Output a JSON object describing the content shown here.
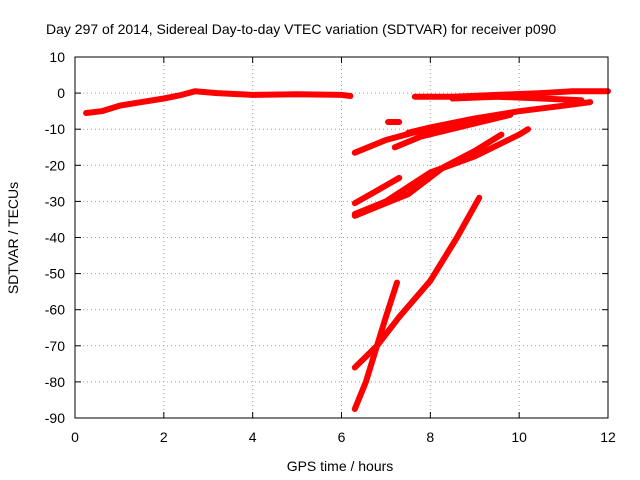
{
  "chart_data": {
    "type": "scatter",
    "title": "Day 297 of 2014, Sidereal Day-to-day VTEC variation (SDTVAR) for receiver p090",
    "xlabel": "GPS time / hours",
    "ylabel": "SDTVAR / TECUs",
    "xlim": [
      0,
      12
    ],
    "ylim": [
      -90,
      10
    ],
    "xticks": [
      0,
      2,
      4,
      6,
      8,
      10,
      12
    ],
    "yticks": [
      10,
      0,
      -10,
      -20,
      -30,
      -40,
      -50,
      -60,
      -70,
      -80,
      -90
    ],
    "grid": true,
    "marker": "plus",
    "color": "#ff0000",
    "series": [
      {
        "x": [
          0.25,
          0.6,
          1.0,
          1.5,
          2.0,
          2.4,
          2.7,
          3.2,
          4.0,
          5.0,
          6.0,
          6.2
        ],
        "y": [
          -5.5,
          -5.0,
          -3.5,
          -2.5,
          -1.5,
          -0.5,
          0.5,
          0.0,
          -0.5,
          -0.3,
          -0.5,
          -0.8
        ]
      },
      {
        "x": [
          7.05,
          7.3
        ],
        "y": [
          -8.0,
          -8.0
        ]
      },
      {
        "x": [
          7.65,
          8.5,
          9.5,
          10.5,
          11.2,
          12.0
        ],
        "y": [
          -1.0,
          -1.0,
          -0.5,
          0.0,
          0.5,
          0.5
        ]
      },
      {
        "x": [
          8.5,
          9.5,
          10.5,
          11.4
        ],
        "y": [
          -1.5,
          -1.0,
          -1.5,
          -2.0
        ]
      },
      {
        "x": [
          7.5,
          8.0,
          9.0,
          10.0,
          11.0,
          11.6
        ],
        "y": [
          -11.0,
          -9.5,
          -7.0,
          -5.0,
          -3.5,
          -2.5
        ]
      },
      {
        "x": [
          6.3,
          7.0,
          7.6,
          8.5
        ],
        "y": [
          -16.5,
          -13.0,
          -11.0,
          -9.0
        ]
      },
      {
        "x": [
          7.2,
          7.8,
          8.8,
          9.8
        ],
        "y": [
          -15.0,
          -12.0,
          -9.0,
          -6.0
        ]
      },
      {
        "x": [
          6.3,
          6.8,
          7.3
        ],
        "y": [
          -30.5,
          -27.0,
          -23.5
        ]
      },
      {
        "x": [
          6.3,
          7.0,
          8.0,
          9.0,
          10.0,
          10.2
        ],
        "y": [
          -33.5,
          -30.0,
          -22.0,
          -17.5,
          -11.5,
          -10.0
        ]
      },
      {
        "x": [
          6.3,
          7.5,
          8.3,
          9.0,
          9.6
        ],
        "y": [
          -34.0,
          -28.0,
          -20.5,
          -16.0,
          -11.5
        ]
      },
      {
        "x": [
          6.3,
          6.8,
          7.3,
          8.0,
          8.6,
          9.1
        ],
        "y": [
          -76.0,
          -70.0,
          -62.0,
          -52.0,
          -40.0,
          -29.0
        ]
      },
      {
        "x": [
          6.3,
          6.55,
          6.8,
          7.0,
          7.25
        ],
        "y": [
          -87.5,
          -80.0,
          -70.0,
          -62.0,
          -52.5
        ]
      }
    ]
  }
}
